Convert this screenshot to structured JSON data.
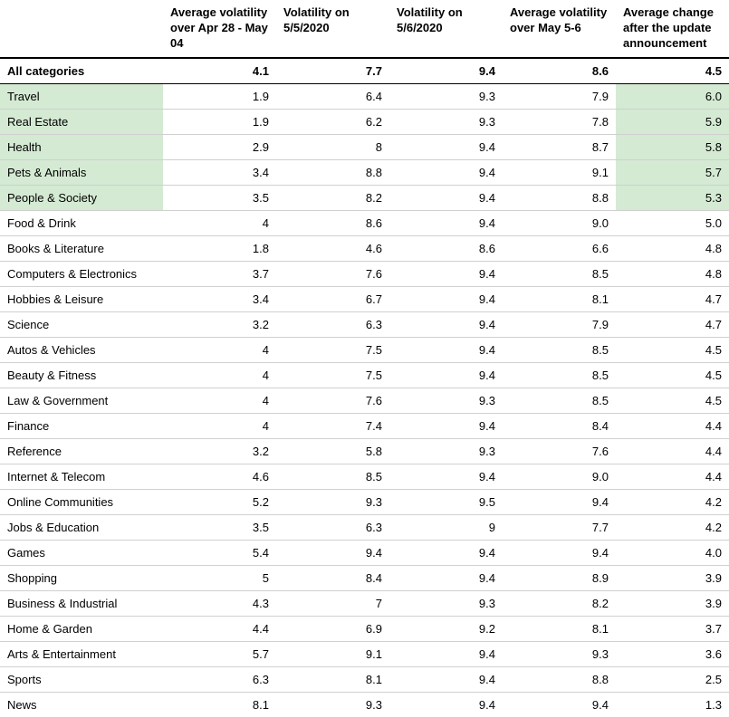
{
  "table": {
    "type": "table",
    "background_color": "#ffffff",
    "border_color": "#d0d0d0",
    "header_border_color": "#000000",
    "highlight_color": "#d4ead3",
    "font_family": "Arial",
    "font_size_pt": 10,
    "columns": [
      "",
      "Average volatility over Apr 28 - May 04",
      "Volatility on 5/5/2020",
      "Volatility on 5/6/2020",
      "Average volatility over May 5-6",
      "Average change after the update announcement"
    ],
    "summary_row": {
      "label": "All categories",
      "values": [
        "4.1",
        "7.7",
        "9.4",
        "8.6",
        "4.5"
      ]
    },
    "rows": [
      {
        "label": "Travel",
        "values": [
          "1.9",
          "6.4",
          "9.3",
          "7.9",
          "6.0"
        ],
        "highlight_label": true,
        "highlight_last": true
      },
      {
        "label": "Real Estate",
        "values": [
          "1.9",
          "6.2",
          "9.3",
          "7.8",
          "5.9"
        ],
        "highlight_label": true,
        "highlight_last": true
      },
      {
        "label": "Health",
        "values": [
          "2.9",
          "8",
          "9.4",
          "8.7",
          "5.8"
        ],
        "highlight_label": true,
        "highlight_last": true
      },
      {
        "label": "Pets & Animals",
        "values": [
          "3.4",
          "8.8",
          "9.4",
          "9.1",
          "5.7"
        ],
        "highlight_label": true,
        "highlight_last": true
      },
      {
        "label": "People & Society",
        "values": [
          "3.5",
          "8.2",
          "9.4",
          "8.8",
          "5.3"
        ],
        "highlight_label": true,
        "highlight_last": true
      },
      {
        "label": "Food & Drink",
        "values": [
          "4",
          "8.6",
          "9.4",
          "9.0",
          "5.0"
        ],
        "highlight_label": false,
        "highlight_last": false
      },
      {
        "label": "Books & Literature",
        "values": [
          "1.8",
          "4.6",
          "8.6",
          "6.6",
          "4.8"
        ],
        "highlight_label": false,
        "highlight_last": false
      },
      {
        "label": "Computers & Electronics",
        "values": [
          "3.7",
          "7.6",
          "9.4",
          "8.5",
          "4.8"
        ],
        "highlight_label": false,
        "highlight_last": false
      },
      {
        "label": "Hobbies & Leisure",
        "values": [
          "3.4",
          "6.7",
          "9.4",
          "8.1",
          "4.7"
        ],
        "highlight_label": false,
        "highlight_last": false
      },
      {
        "label": "Science",
        "values": [
          "3.2",
          "6.3",
          "9.4",
          "7.9",
          "4.7"
        ],
        "highlight_label": false,
        "highlight_last": false
      },
      {
        "label": "Autos & Vehicles",
        "values": [
          "4",
          "7.5",
          "9.4",
          "8.5",
          "4.5"
        ],
        "highlight_label": false,
        "highlight_last": false
      },
      {
        "label": "Beauty & Fitness",
        "values": [
          "4",
          "7.5",
          "9.4",
          "8.5",
          "4.5"
        ],
        "highlight_label": false,
        "highlight_last": false
      },
      {
        "label": "Law & Government",
        "values": [
          "4",
          "7.6",
          "9.3",
          "8.5",
          "4.5"
        ],
        "highlight_label": false,
        "highlight_last": false
      },
      {
        "label": "Finance",
        "values": [
          "4",
          "7.4",
          "9.4",
          "8.4",
          "4.4"
        ],
        "highlight_label": false,
        "highlight_last": false
      },
      {
        "label": "Reference",
        "values": [
          "3.2",
          "5.8",
          "9.3",
          "7.6",
          "4.4"
        ],
        "highlight_label": false,
        "highlight_last": false
      },
      {
        "label": "Internet & Telecom",
        "values": [
          "4.6",
          "8.5",
          "9.4",
          "9.0",
          "4.4"
        ],
        "highlight_label": false,
        "highlight_last": false
      },
      {
        "label": "Online Communities",
        "values": [
          "5.2",
          "9.3",
          "9.5",
          "9.4",
          "4.2"
        ],
        "highlight_label": false,
        "highlight_last": false
      },
      {
        "label": "Jobs & Education",
        "values": [
          "3.5",
          "6.3",
          "9",
          "7.7",
          "4.2"
        ],
        "highlight_label": false,
        "highlight_last": false
      },
      {
        "label": "Games",
        "values": [
          "5.4",
          "9.4",
          "9.4",
          "9.4",
          "4.0"
        ],
        "highlight_label": false,
        "highlight_last": false
      },
      {
        "label": "Shopping",
        "values": [
          "5",
          "8.4",
          "9.4",
          "8.9",
          "3.9"
        ],
        "highlight_label": false,
        "highlight_last": false
      },
      {
        "label": "Business & Industrial",
        "values": [
          "4.3",
          "7",
          "9.3",
          "8.2",
          "3.9"
        ],
        "highlight_label": false,
        "highlight_last": false
      },
      {
        "label": "Home & Garden",
        "values": [
          "4.4",
          "6.9",
          "9.2",
          "8.1",
          "3.7"
        ],
        "highlight_label": false,
        "highlight_last": false
      },
      {
        "label": "Arts & Entertainment",
        "values": [
          "5.7",
          "9.1",
          "9.4",
          "9.3",
          "3.6"
        ],
        "highlight_label": false,
        "highlight_last": false
      },
      {
        "label": "Sports",
        "values": [
          "6.3",
          "8.1",
          "9.4",
          "8.8",
          "2.5"
        ],
        "highlight_label": false,
        "highlight_last": false
      },
      {
        "label": "News",
        "values": [
          "8.1",
          "9.3",
          "9.4",
          "9.4",
          "1.3"
        ],
        "highlight_label": false,
        "highlight_last": false
      }
    ]
  }
}
